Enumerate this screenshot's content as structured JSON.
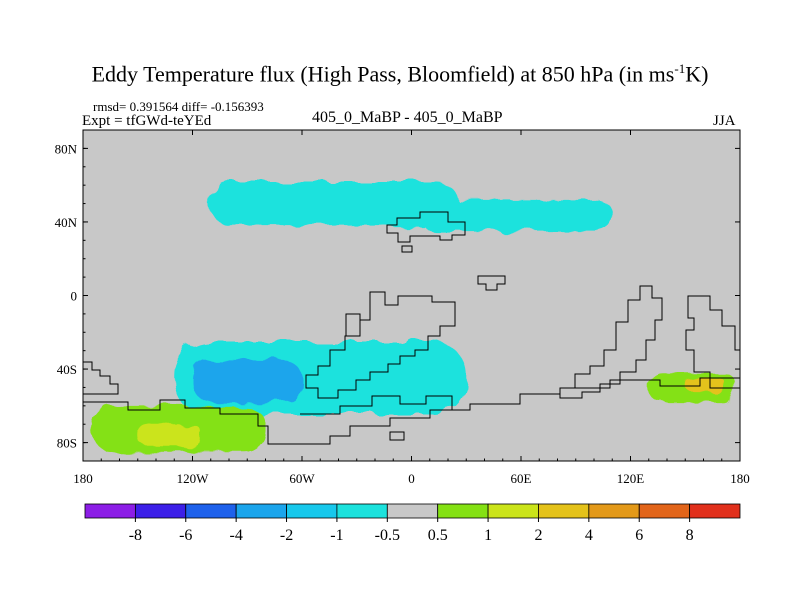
{
  "chart_data": {
    "type": "heatmap",
    "title_main": "Eddy Temperature flux (High Pass, Bloomfield) at 850 hPa (in ms",
    "title_sup": "-1",
    "title_end": "K)",
    "stats": "rmsd= 0.391564 diff= -0.156393",
    "expt": "Expt = tfGWd-teYEd",
    "case": "405_0_MaBP - 405_0_MaBP",
    "season": "JJA",
    "xlabel": "",
    "ylabel": "",
    "xlim": [
      -180,
      180
    ],
    "ylim": [
      -90,
      90
    ],
    "x_ticks": [
      {
        "value": -180,
        "label": "180"
      },
      {
        "value": -120,
        "label": "120W"
      },
      {
        "value": -60,
        "label": "60W"
      },
      {
        "value": 0,
        "label": "0"
      },
      {
        "value": 60,
        "label": "60E"
      },
      {
        "value": 120,
        "label": "120E"
      },
      {
        "value": 180,
        "label": "180"
      }
    ],
    "y_ticks": [
      {
        "value": 80,
        "label": "80N"
      },
      {
        "value": 40,
        "label": "40N"
      },
      {
        "value": 0,
        "label": "0"
      },
      {
        "value": -40,
        "label": "40S"
      },
      {
        "value": -80,
        "label": "80S"
      }
    ],
    "colorbar": {
      "colors": [
        "#8c1de6",
        "#3c1fe8",
        "#1e61eb",
        "#1ba5ec",
        "#17c8ec",
        "#1ce2dd",
        "#c8c8c8",
        "#84e113",
        "#cbe41a",
        "#e4c21a",
        "#e39919",
        "#e2651a",
        "#e1301c"
      ],
      "labels": [
        "-8",
        "-6",
        "-4",
        "-2",
        "-1",
        "-0.5",
        "0.5",
        "1",
        "2",
        "4",
        "6",
        "8"
      ]
    },
    "regions": [
      {
        "name": "northern-cyan-band",
        "color": "#1ce2dd",
        "lon": [
          -110,
          25
        ],
        "lat": [
          38,
          62
        ]
      },
      {
        "name": "north-pacific-cyan",
        "color": "#1ce2dd",
        "lon": [
          5,
          110
        ],
        "lat": [
          35,
          52
        ]
      },
      {
        "name": "southern-ocean-cyan",
        "color": "#1ce2dd",
        "lon": [
          -130,
          30
        ],
        "lat": [
          -65,
          -25
        ]
      },
      {
        "name": "southern-ocean-blue",
        "color": "#1ba5ec",
        "lon": [
          -120,
          -60
        ],
        "lat": [
          -58,
          -35
        ]
      },
      {
        "name": "south-pacific-green",
        "color": "#84e113",
        "lon": [
          -175,
          -80
        ],
        "lat": [
          -85,
          -60
        ]
      },
      {
        "name": "south-pacific-yellow",
        "color": "#cbe41a",
        "lon": [
          -150,
          -115
        ],
        "lat": [
          -82,
          -70
        ]
      },
      {
        "name": "indian-ocean-green",
        "color": "#84e113",
        "lon": [
          130,
          178
        ],
        "lat": [
          -58,
          -42
        ]
      },
      {
        "name": "indian-ocean-orange",
        "color": "#e4c21a",
        "lon": [
          150,
          172
        ],
        "lat": [
          -52,
          -45
        ]
      }
    ]
  }
}
